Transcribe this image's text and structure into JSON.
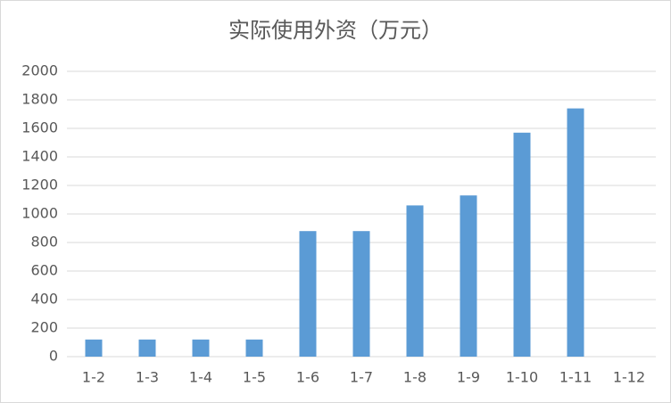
{
  "chart_data": {
    "type": "bar",
    "title": "实际使用外资（万元）",
    "categories": [
      "1-2",
      "1-3",
      "1-4",
      "1-5",
      "1-6",
      "1-7",
      "1-8",
      "1-9",
      "1-10",
      "1-11",
      "1-12"
    ],
    "values": [
      120,
      120,
      120,
      120,
      880,
      880,
      1060,
      1130,
      1570,
      1740,
      null
    ],
    "color": "#5b9bd5",
    "ylim": [
      0,
      2000
    ],
    "yticks": [
      0,
      200,
      400,
      600,
      800,
      1000,
      1200,
      1400,
      1600,
      1800,
      2000
    ],
    "grid": true
  }
}
